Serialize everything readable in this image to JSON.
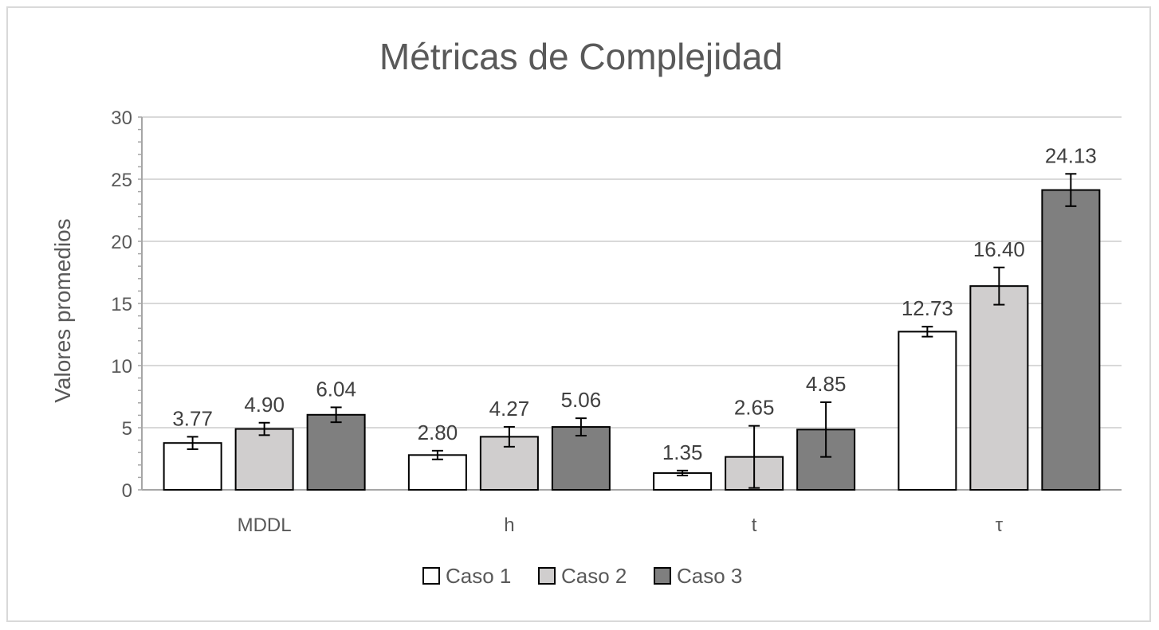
{
  "chart_data": {
    "type": "bar",
    "title": "Métricas de Complejidad",
    "ylabel": "Valores promedios",
    "xlabel": "",
    "ylim": [
      0,
      30
    ],
    "yticks": [
      0,
      5,
      10,
      15,
      20,
      25,
      30
    ],
    "grid": true,
    "legend_position": "bottom",
    "categories": [
      "MDDL",
      "h",
      "t",
      "τ"
    ],
    "series": [
      {
        "name": "Caso 1",
        "color": "#ffffff",
        "values": [
          3.77,
          2.8,
          1.35,
          12.73
        ],
        "labels": [
          "3.77",
          "2.80",
          "1.35",
          "12.73"
        ],
        "errors": [
          0.5,
          0.35,
          0.2,
          0.4
        ]
      },
      {
        "name": "Caso 2",
        "color": "#d0cece",
        "values": [
          4.9,
          4.27,
          2.65,
          16.4
        ],
        "labels": [
          "4.90",
          "4.27",
          "2.65",
          "16.40"
        ],
        "errors": [
          0.5,
          0.8,
          2.5,
          1.5
        ]
      },
      {
        "name": "Caso 3",
        "color": "#7f7f7f",
        "values": [
          6.04,
          5.06,
          4.85,
          24.13
        ],
        "labels": [
          "6.04",
          "5.06",
          "4.85",
          "24.13"
        ],
        "errors": [
          0.6,
          0.7,
          2.2,
          1.3
        ]
      }
    ]
  }
}
